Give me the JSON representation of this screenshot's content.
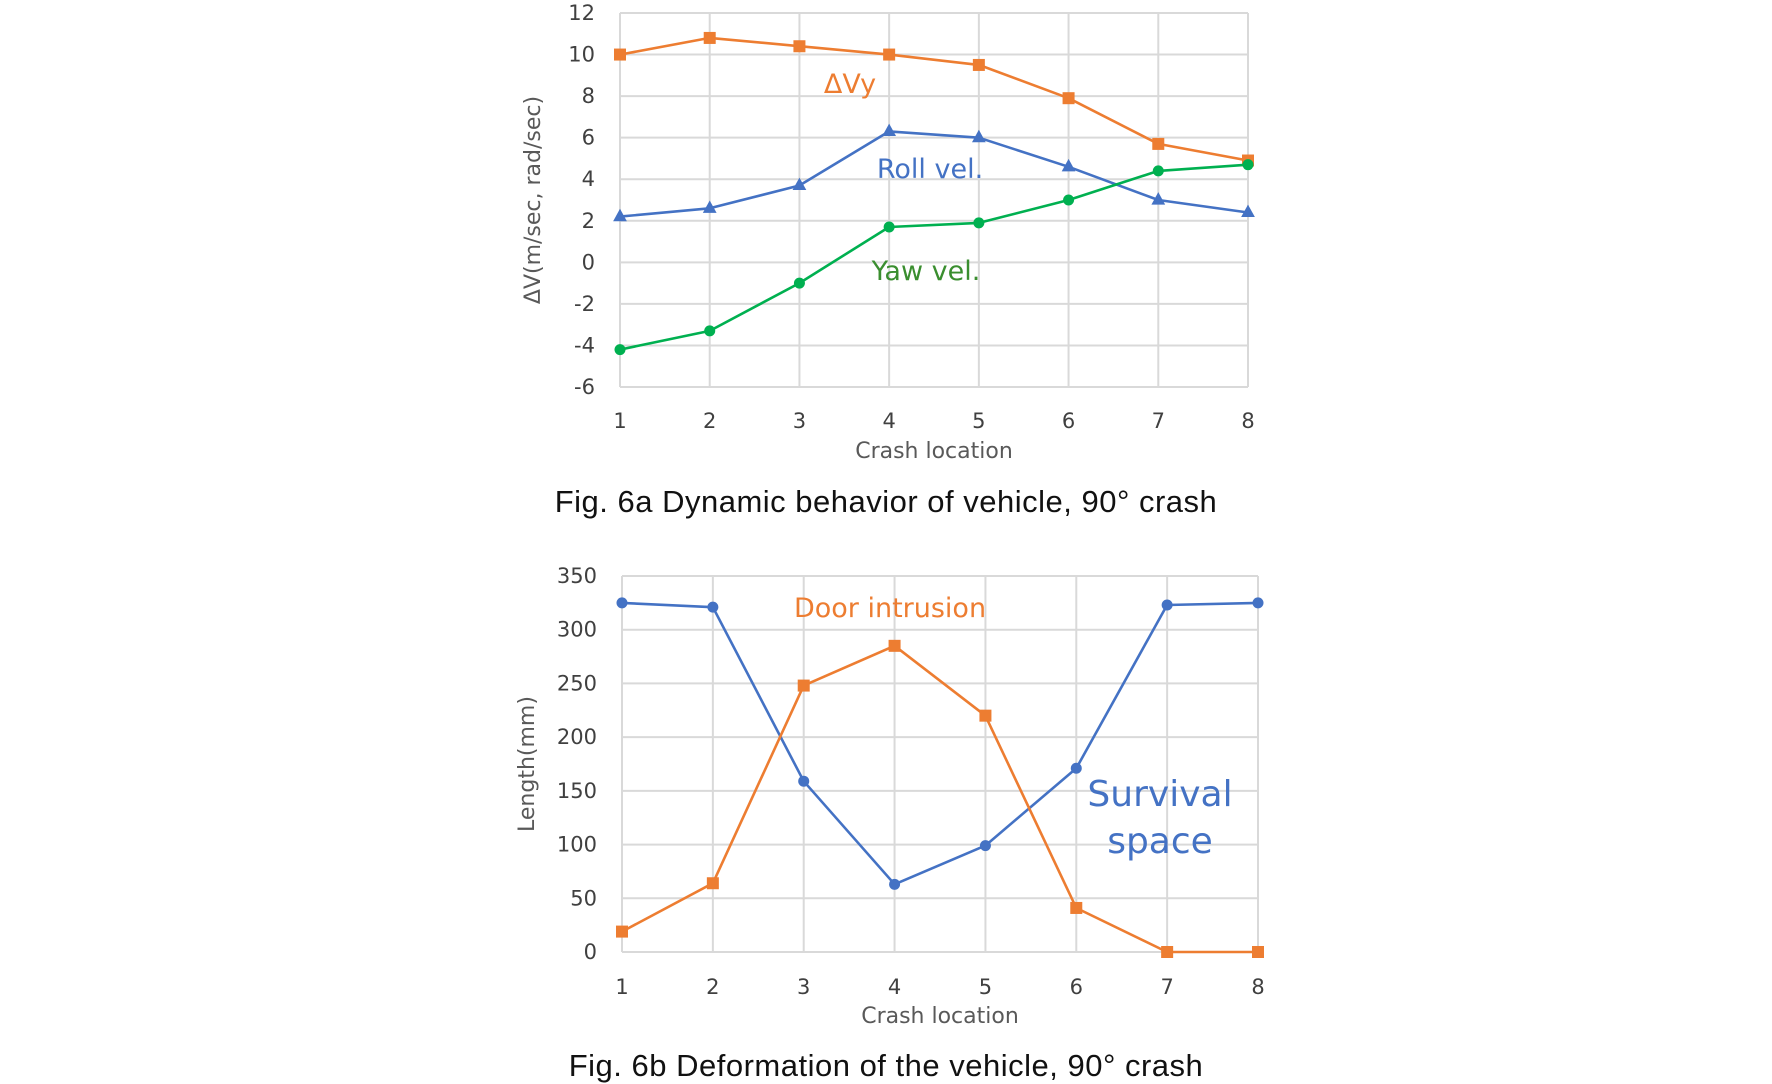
{
  "colors": {
    "orange": "#ED7D31",
    "blue": "#4472C4",
    "green": "#00B050",
    "dark_green": "#3A8E2F",
    "grid": "#D9D9D9"
  },
  "captions": {
    "fig6a": "Fig. 6a Dynamic behavior of vehicle, 90° crash",
    "fig6b": "Fig. 6b Deformation of the vehicle, 90° crash"
  },
  "chart_data": [
    {
      "type": "line",
      "title": "",
      "xlabel": "Crash location",
      "ylabel": "ΔV(m/sec, rad/sec)",
      "x": [
        1,
        2,
        3,
        4,
        5,
        6,
        7,
        8
      ],
      "ylim": [
        -6,
        12
      ],
      "yticks": [
        -6,
        -4,
        -2,
        0,
        2,
        4,
        6,
        8,
        10,
        12
      ],
      "grid": true,
      "series": [
        {
          "name": "ΔVy",
          "marker": "square",
          "color": "#ED7D31",
          "label_color": "#ED7D31",
          "values": [
            10.0,
            10.8,
            10.4,
            10.0,
            9.5,
            7.9,
            5.7,
            4.9
          ]
        },
        {
          "name": "Roll vel.",
          "marker": "triangle",
          "color": "#4472C4",
          "label_color": "#4472C4",
          "values": [
            2.2,
            2.6,
            3.7,
            6.3,
            6.0,
            4.6,
            3.0,
            2.4
          ]
        },
        {
          "name": "Yaw vel.",
          "marker": "circle",
          "color": "#00B050",
          "label_color": "#3A8E2F",
          "values": [
            -4.2,
            -3.3,
            -1.0,
            1.7,
            1.9,
            3.0,
            4.4,
            4.7
          ]
        }
      ]
    },
    {
      "type": "line",
      "title": "",
      "xlabel": "Crash location",
      "ylabel": "Length(mm)",
      "x": [
        1,
        2,
        3,
        4,
        5,
        6,
        7,
        8
      ],
      "ylim": [
        0,
        350
      ],
      "yticks": [
        0,
        50,
        100,
        150,
        200,
        250,
        300,
        350
      ],
      "grid": true,
      "series": [
        {
          "name": "Survival space",
          "marker": "circle",
          "color": "#4472C4",
          "label_color": "#4472C4",
          "values": [
            325,
            321,
            159,
            63,
            99,
            171,
            323,
            325
          ]
        },
        {
          "name": "Door intrusion",
          "marker": "square",
          "color": "#ED7D31",
          "label_color": "#ED7D31",
          "values": [
            19,
            64,
            248,
            285,
            220,
            41,
            0,
            0
          ]
        }
      ]
    }
  ]
}
